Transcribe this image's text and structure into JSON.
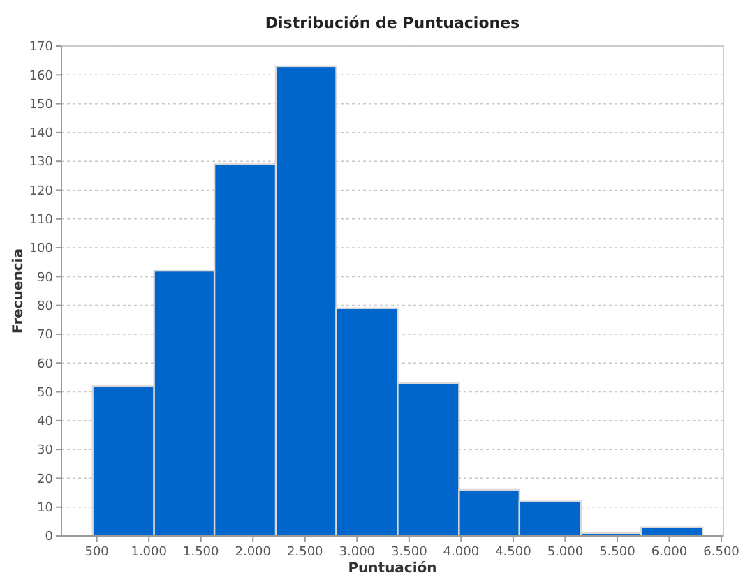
{
  "chart_data": {
    "type": "histogram",
    "title": "Distribución de Puntuaciones",
    "xlabel": "Puntuación",
    "ylabel": "Frecuencia",
    "bins": [
      460,
      1050,
      1630,
      2220,
      2800,
      3390,
      3980,
      4560,
      5150,
      5730,
      6320
    ],
    "values": [
      52,
      92,
      129,
      163,
      79,
      53,
      16,
      12,
      1,
      3
    ],
    "color": "#0066cc",
    "xlim": [
      160,
      6520
    ],
    "xticks": [
      500,
      {
        "value": 1000,
        "label": "1.000"
      },
      {
        "value": 1500,
        "label": "1.500"
      },
      {
        "value": 2000,
        "label": "2.000"
      },
      {
        "value": 2500,
        "label": "2.500"
      },
      {
        "value": 3000,
        "label": "3.000"
      },
      {
        "value": 3500,
        "label": "3.500"
      },
      {
        "value": 4000,
        "label": "4.000"
      },
      {
        "value": 4500,
        "label": "4.500"
      },
      {
        "value": 5000,
        "label": "5.000"
      },
      {
        "value": 5500,
        "label": "5.500"
      },
      {
        "value": 6000,
        "label": "6.000"
      },
      {
        "value": 6500,
        "label": "6.500"
      }
    ],
    "ylim": [
      0,
      170
    ],
    "yticks": [
      0,
      10,
      20,
      30,
      40,
      50,
      60,
      70,
      80,
      90,
      100,
      110,
      120,
      130,
      140,
      150,
      160,
      170
    ],
    "grid": "y"
  }
}
